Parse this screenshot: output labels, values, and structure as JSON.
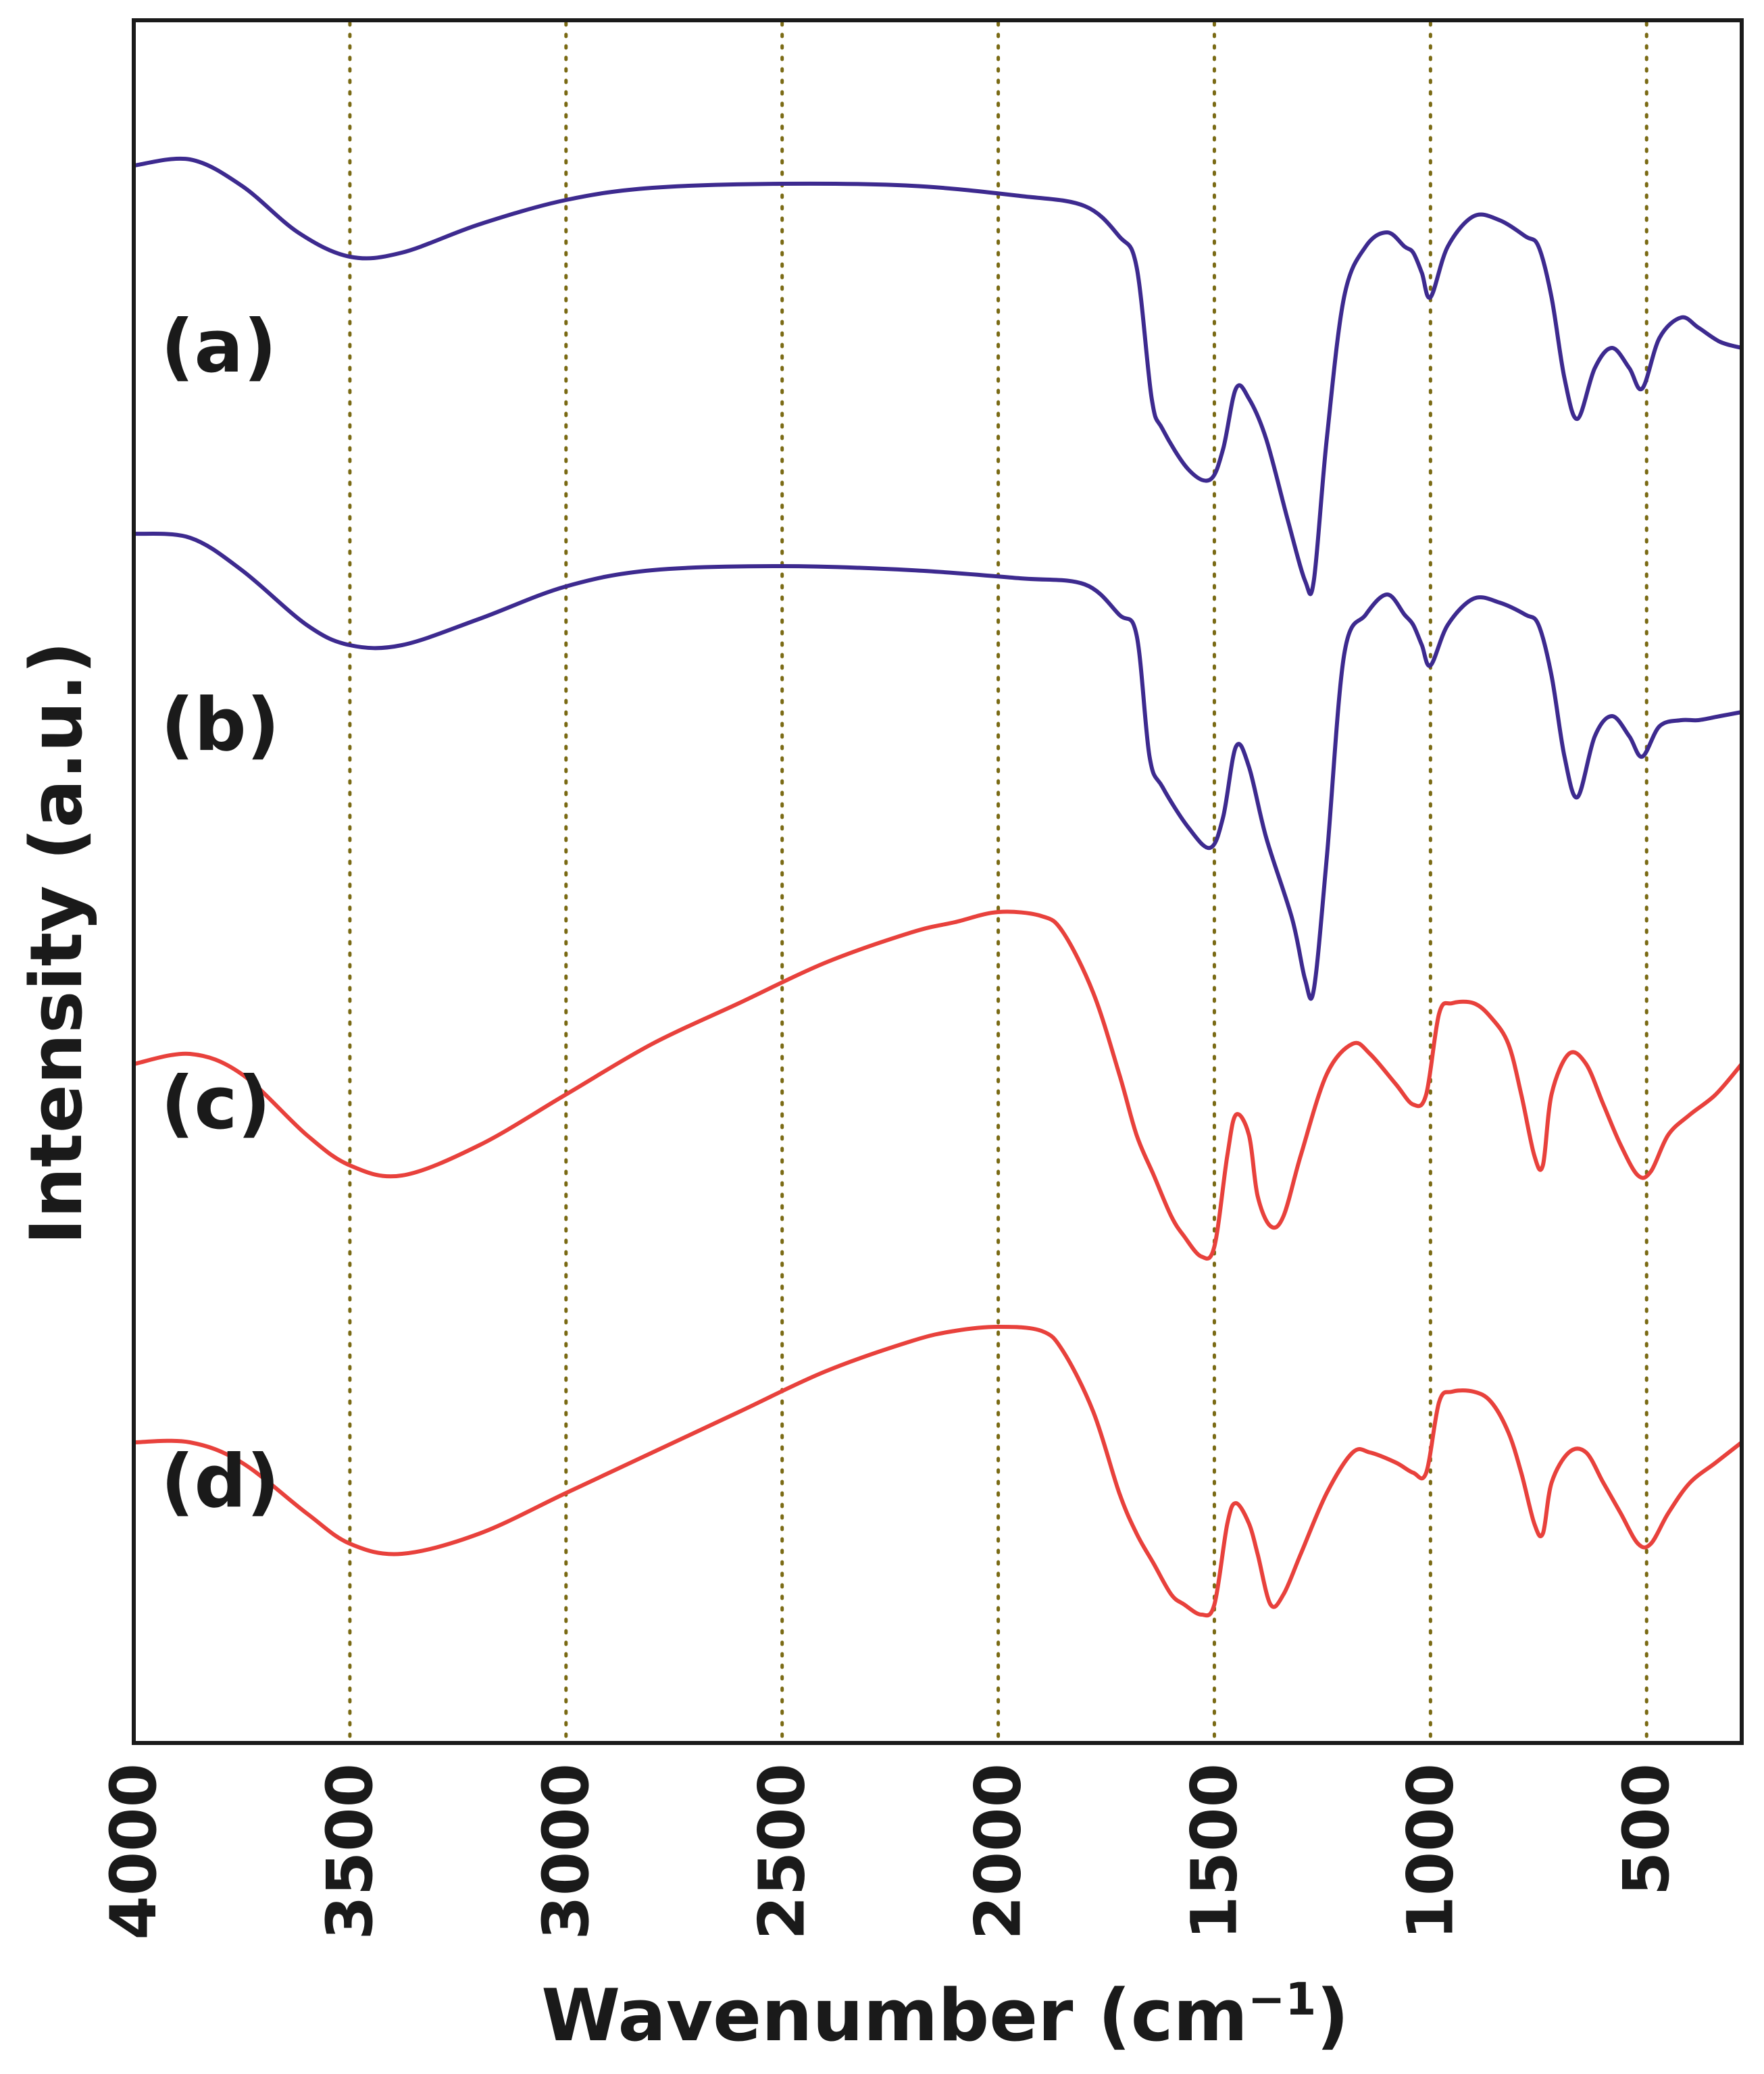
{
  "chart_data": {
    "type": "line",
    "title": "",
    "xlabel": "Wavenumber (cm",
    "xlabel_superscript": "−1",
    "xlabel_suffix": ")",
    "ylabel": "Intensity (a.u.)",
    "xlim": [
      4000,
      280
    ],
    "x_ticks": [
      4000,
      3500,
      3000,
      2500,
      2000,
      1500,
      1000,
      500
    ],
    "x_tick_labels": [
      "4000",
      "3500",
      "3000",
      "2500",
      "2000",
      "1500",
      "1000",
      "500"
    ],
    "gridlines_x": [
      3500,
      3000,
      2500,
      2000,
      1500,
      1000,
      500
    ],
    "grid_style": "dotted vertical",
    "y_ticks_visible": false,
    "series": [
      {
        "name": "(a)",
        "color": "#3d2a8f",
        "offset": 3,
        "points": [
          [
            4000,
            0.95
          ],
          [
            3870,
            0.98
          ],
          [
            3750,
            0.85
          ],
          [
            3620,
            0.62
          ],
          [
            3500,
            0.5
          ],
          [
            3380,
            0.52
          ],
          [
            3200,
            0.66
          ],
          [
            3000,
            0.78
          ],
          [
            2800,
            0.84
          ],
          [
            2500,
            0.86
          ],
          [
            2200,
            0.85
          ],
          [
            1950,
            0.8
          ],
          [
            1800,
            0.75
          ],
          [
            1720,
            0.6
          ],
          [
            1680,
            0.45
          ],
          [
            1645,
            -0.2
          ],
          [
            1620,
            -0.35
          ],
          [
            1560,
            -0.55
          ],
          [
            1510,
            -0.6
          ],
          [
            1480,
            -0.45
          ],
          [
            1450,
            -0.15
          ],
          [
            1420,
            -0.2
          ],
          [
            1380,
            -0.4
          ],
          [
            1330,
            -0.8
          ],
          [
            1290,
            -1.1
          ],
          [
            1270,
            -1.1
          ],
          [
            1240,
            -0.4
          ],
          [
            1200,
            0.3
          ],
          [
            1150,
            0.55
          ],
          [
            1100,
            0.62
          ],
          [
            1060,
            0.55
          ],
          [
            1040,
            0.52
          ],
          [
            1020,
            0.42
          ],
          [
            1000,
            0.3
          ],
          [
            960,
            0.55
          ],
          [
            900,
            0.7
          ],
          [
            840,
            0.68
          ],
          [
            780,
            0.6
          ],
          [
            750,
            0.55
          ],
          [
            720,
            0.3
          ],
          [
            690,
            -0.1
          ],
          [
            660,
            -0.3
          ],
          [
            620,
            -0.05
          ],
          [
            580,
            0.05
          ],
          [
            540,
            -0.05
          ],
          [
            510,
            -0.15
          ],
          [
            470,
            0.1
          ],
          [
            420,
            0.2
          ],
          [
            380,
            0.15
          ],
          [
            330,
            0.08
          ],
          [
            280,
            0.05
          ]
        ]
      },
      {
        "name": "(b)",
        "color": "#3d2a8f",
        "offset": 2,
        "points": [
          [
            4000,
            1.0
          ],
          [
            3870,
            0.98
          ],
          [
            3750,
            0.82
          ],
          [
            3600,
            0.55
          ],
          [
            3500,
            0.45
          ],
          [
            3380,
            0.45
          ],
          [
            3200,
            0.58
          ],
          [
            3000,
            0.74
          ],
          [
            2800,
            0.82
          ],
          [
            2500,
            0.84
          ],
          [
            2200,
            0.82
          ],
          [
            1950,
            0.78
          ],
          [
            1800,
            0.75
          ],
          [
            1720,
            0.6
          ],
          [
            1680,
            0.5
          ],
          [
            1650,
            -0.1
          ],
          [
            1620,
            -0.25
          ],
          [
            1560,
            -0.45
          ],
          [
            1510,
            -0.55
          ],
          [
            1480,
            -0.4
          ],
          [
            1450,
            -0.05
          ],
          [
            1420,
            -0.15
          ],
          [
            1380,
            -0.5
          ],
          [
            1320,
            -0.9
          ],
          [
            1290,
            -1.2
          ],
          [
            1270,
            -1.25
          ],
          [
            1240,
            -0.6
          ],
          [
            1200,
            0.4
          ],
          [
            1150,
            0.6
          ],
          [
            1100,
            0.7
          ],
          [
            1060,
            0.6
          ],
          [
            1040,
            0.55
          ],
          [
            1020,
            0.45
          ],
          [
            1000,
            0.35
          ],
          [
            960,
            0.55
          ],
          [
            900,
            0.68
          ],
          [
            840,
            0.66
          ],
          [
            780,
            0.6
          ],
          [
            750,
            0.55
          ],
          [
            720,
            0.3
          ],
          [
            690,
            -0.1
          ],
          [
            660,
            -0.3
          ],
          [
            620,
            0.0
          ],
          [
            580,
            0.1
          ],
          [
            540,
            0.0
          ],
          [
            510,
            -0.1
          ],
          [
            470,
            0.05
          ],
          [
            420,
            0.08
          ],
          [
            380,
            0.08
          ],
          [
            330,
            0.1
          ],
          [
            280,
            0.12
          ]
        ]
      },
      {
        "name": "(c)",
        "color": "#e8413c",
        "offset": 1,
        "points": [
          [
            4000,
            0.25
          ],
          [
            3870,
            0.3
          ],
          [
            3750,
            0.2
          ],
          [
            3600,
            -0.1
          ],
          [
            3500,
            -0.25
          ],
          [
            3380,
            -0.3
          ],
          [
            3200,
            -0.15
          ],
          [
            3000,
            0.1
          ],
          [
            2800,
            0.35
          ],
          [
            2600,
            0.55
          ],
          [
            2400,
            0.75
          ],
          [
            2200,
            0.9
          ],
          [
            2100,
            0.95
          ],
          [
            2000,
            1.0
          ],
          [
            1900,
            0.98
          ],
          [
            1850,
            0.9
          ],
          [
            1780,
            0.6
          ],
          [
            1720,
            0.2
          ],
          [
            1680,
            -0.1
          ],
          [
            1640,
            -0.3
          ],
          [
            1600,
            -0.5
          ],
          [
            1570,
            -0.6
          ],
          [
            1530,
            -0.7
          ],
          [
            1500,
            -0.65
          ],
          [
            1470,
            -0.2
          ],
          [
            1450,
            0.0
          ],
          [
            1420,
            -0.1
          ],
          [
            1400,
            -0.4
          ],
          [
            1370,
            -0.55
          ],
          [
            1340,
            -0.5
          ],
          [
            1300,
            -0.2
          ],
          [
            1240,
            0.2
          ],
          [
            1180,
            0.35
          ],
          [
            1140,
            0.3
          ],
          [
            1080,
            0.15
          ],
          [
            1040,
            0.05
          ],
          [
            1010,
            0.1
          ],
          [
            980,
            0.5
          ],
          [
            950,
            0.55
          ],
          [
            900,
            0.55
          ],
          [
            860,
            0.48
          ],
          [
            820,
            0.35
          ],
          [
            790,
            0.1
          ],
          [
            760,
            -0.2
          ],
          [
            740,
            -0.25
          ],
          [
            720,
            0.1
          ],
          [
            680,
            0.3
          ],
          [
            640,
            0.25
          ],
          [
            600,
            0.05
          ],
          [
            560,
            -0.15
          ],
          [
            520,
            -0.3
          ],
          [
            490,
            -0.28
          ],
          [
            450,
            -0.1
          ],
          [
            400,
            0.0
          ],
          [
            340,
            0.1
          ],
          [
            280,
            0.25
          ]
        ]
      },
      {
        "name": "(d)",
        "color": "#e8413c",
        "offset": 0,
        "points": [
          [
            4000,
            0.25
          ],
          [
            3870,
            0.25
          ],
          [
            3750,
            0.15
          ],
          [
            3600,
            -0.1
          ],
          [
            3500,
            -0.25
          ],
          [
            3380,
            -0.3
          ],
          [
            3200,
            -0.2
          ],
          [
            3000,
            0.0
          ],
          [
            2800,
            0.2
          ],
          [
            2600,
            0.4
          ],
          [
            2400,
            0.6
          ],
          [
            2200,
            0.75
          ],
          [
            2100,
            0.8
          ],
          [
            2000,
            0.82
          ],
          [
            1900,
            0.8
          ],
          [
            1850,
            0.7
          ],
          [
            1780,
            0.4
          ],
          [
            1720,
            0.0
          ],
          [
            1680,
            -0.2
          ],
          [
            1640,
            -0.35
          ],
          [
            1600,
            -0.5
          ],
          [
            1570,
            -0.55
          ],
          [
            1530,
            -0.6
          ],
          [
            1500,
            -0.55
          ],
          [
            1470,
            -0.15
          ],
          [
            1450,
            -0.05
          ],
          [
            1420,
            -0.15
          ],
          [
            1400,
            -0.3
          ],
          [
            1370,
            -0.55
          ],
          [
            1340,
            -0.5
          ],
          [
            1300,
            -0.3
          ],
          [
            1240,
            0.0
          ],
          [
            1180,
            0.2
          ],
          [
            1140,
            0.2
          ],
          [
            1080,
            0.15
          ],
          [
            1040,
            0.1
          ],
          [
            1010,
            0.1
          ],
          [
            980,
            0.45
          ],
          [
            950,
            0.5
          ],
          [
            900,
            0.5
          ],
          [
            860,
            0.45
          ],
          [
            820,
            0.3
          ],
          [
            790,
            0.1
          ],
          [
            760,
            -0.15
          ],
          [
            740,
            -0.2
          ],
          [
            720,
            0.05
          ],
          [
            680,
            0.2
          ],
          [
            640,
            0.2
          ],
          [
            600,
            0.05
          ],
          [
            560,
            -0.1
          ],
          [
            520,
            -0.25
          ],
          [
            490,
            -0.25
          ],
          [
            450,
            -0.1
          ],
          [
            400,
            0.05
          ],
          [
            340,
            0.15
          ],
          [
            280,
            0.25
          ]
        ]
      }
    ],
    "legend": "inline labels at left of each curve"
  }
}
